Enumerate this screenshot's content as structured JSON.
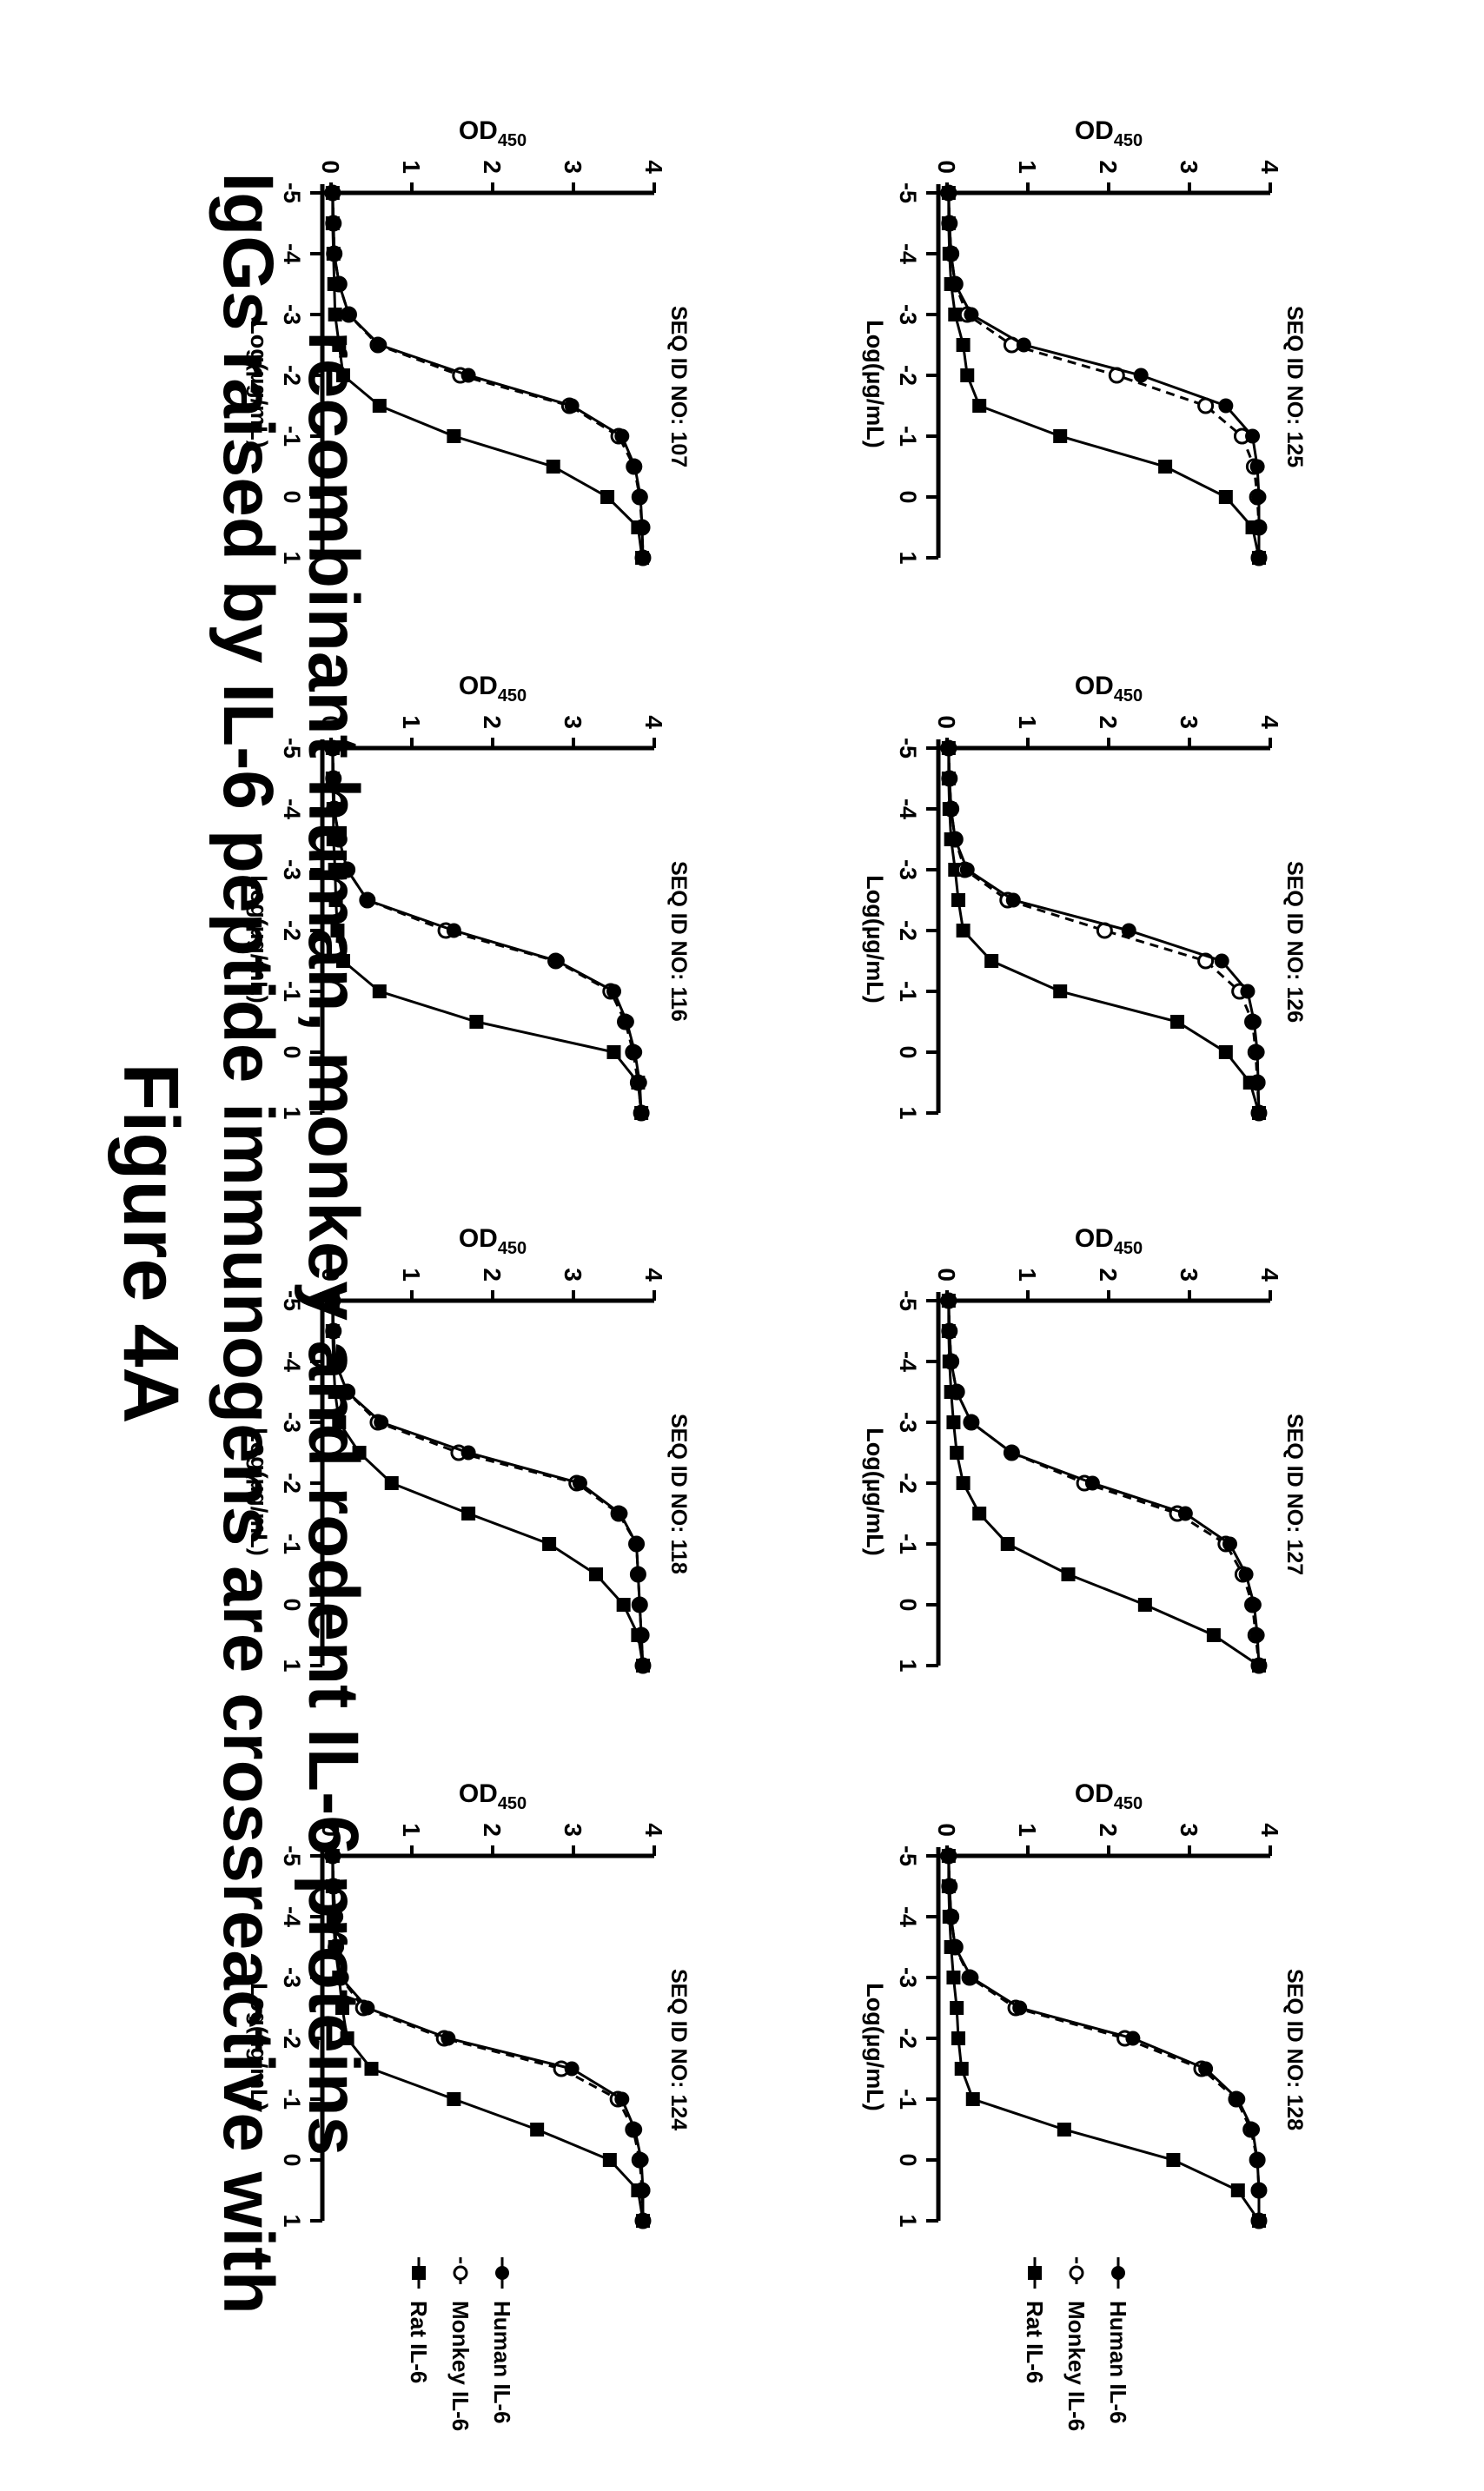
{
  "figure": {
    "title": "Figure 4A",
    "subtitle_line1": "IgGs raised by IL-6 peptide immunogens are crossreactive with",
    "subtitle_line2": "recombinant human, monkey and rodent IL-6 proteins"
  },
  "axis_text": {
    "xlabel": "Log(µg/mL)",
    "ylabel": "OD",
    "ylabel_sub": "450",
    "x_ticks": [
      "-5",
      "-4",
      "-3",
      "-2",
      "-1",
      "0",
      "1"
    ],
    "y_ticks": [
      "0",
      "1",
      "2",
      "3",
      "4"
    ]
  },
  "legends": [
    {
      "items": [
        {
          "label": "Human IL-6",
          "marker": "filled-circle",
          "line": "solid"
        },
        {
          "label": "Monkey IL-6",
          "marker": "open-circle",
          "line": "dashed"
        },
        {
          "label": "Rat IL-6",
          "marker": "filled-square",
          "line": "solid"
        }
      ]
    },
    {
      "items": [
        {
          "label": "Human IL-6",
          "marker": "filled-circle",
          "line": "solid"
        },
        {
          "label": "Monkey IL-6",
          "marker": "open-circle",
          "line": "dashed"
        },
        {
          "label": "Rat IL-6",
          "marker": "filled-square",
          "line": "solid"
        }
      ]
    }
  ],
  "chart_data": [
    {
      "type": "line",
      "title": "SEQ ID NO: 107",
      "xlabel": "Log(µg/mL)",
      "ylabel": "OD450",
      "xlim": [
        -5,
        1
      ],
      "ylim": [
        0,
        4
      ],
      "x": [
        -5,
        -4.5,
        -4,
        -3.5,
        -3,
        -2.5,
        -2,
        -1.5,
        -1,
        -0.5,
        0,
        0.5,
        1
      ],
      "series": [
        {
          "name": "Human IL-6",
          "values": [
            0.02,
            0.03,
            0.04,
            0.1,
            0.22,
            0.6,
            1.7,
            2.98,
            3.6,
            3.76,
            3.83,
            3.85,
            3.86
          ]
        },
        {
          "name": "Monkey IL-6",
          "values": [
            0.02,
            0.03,
            0.04,
            0.1,
            0.22,
            0.58,
            1.6,
            2.95,
            3.56,
            3.75,
            3.82,
            3.85,
            3.86
          ]
        },
        {
          "name": "Rat IL-6",
          "values": [
            0.02,
            0.02,
            0.03,
            0.04,
            0.05,
            0.1,
            0.15,
            0.6,
            1.52,
            2.75,
            3.42,
            3.8,
            3.85
          ]
        }
      ]
    },
    {
      "type": "line",
      "title": "SEQ ID NO: 116",
      "xlabel": "Log(µg/mL)",
      "ylabel": "OD450",
      "xlim": [
        -5,
        1
      ],
      "ylim": [
        0,
        4
      ],
      "x": [
        -5,
        -4.5,
        -4,
        -3.5,
        -3,
        -2.5,
        -2,
        -1.5,
        -1,
        -0.5,
        0,
        0.5,
        1
      ],
      "series": [
        {
          "name": "Human IL-6",
          "values": [
            0.02,
            0.03,
            0.04,
            0.1,
            0.2,
            0.45,
            1.52,
            2.8,
            3.5,
            3.66,
            3.76,
            3.82,
            3.84
          ]
        },
        {
          "name": "Monkey IL-6",
          "values": [
            0.02,
            0.03,
            0.04,
            0.1,
            0.2,
            0.45,
            1.42,
            2.78,
            3.46,
            3.64,
            3.74,
            3.8,
            3.84
          ]
        },
        {
          "name": "Rat IL-6",
          "values": [
            0.02,
            0.02,
            0.03,
            0.03,
            0.05,
            0.06,
            0.08,
            0.15,
            0.6,
            1.8,
            3.5,
            3.8,
            3.84
          ]
        }
      ]
    },
    {
      "type": "line",
      "title": "SEQ ID NO: 118",
      "xlabel": "Log(µg/mL)",
      "ylabel": "OD450",
      "xlim": [
        -5,
        1
      ],
      "ylim": [
        0,
        4
      ],
      "x": [
        -5,
        -4.5,
        -4,
        -3.5,
        -3,
        -2.5,
        -2,
        -1.5,
        -1,
        -0.5,
        0,
        0.5,
        1
      ],
      "series": [
        {
          "name": "Human IL-6",
          "values": [
            0.02,
            0.03,
            0.05,
            0.2,
            0.62,
            1.7,
            3.08,
            3.58,
            3.78,
            3.8,
            3.82,
            3.84,
            3.86
          ]
        },
        {
          "name": "Monkey IL-6",
          "values": [
            0.02,
            0.03,
            0.05,
            0.2,
            0.58,
            1.58,
            3.04,
            3.56,
            3.78,
            3.8,
            3.82,
            3.84,
            3.86
          ]
        },
        {
          "name": "Rat IL-6",
          "values": [
            0.02,
            0.02,
            0.03,
            0.05,
            0.1,
            0.35,
            0.75,
            1.7,
            2.7,
            3.28,
            3.62,
            3.8,
            3.86
          ]
        }
      ]
    },
    {
      "type": "line",
      "title": "SEQ ID NO: 124",
      "xlabel": "Log(µg/mL)",
      "ylabel": "OD450",
      "xlim": [
        -5,
        1
      ],
      "ylim": [
        0,
        4
      ],
      "x": [
        -5,
        -4.5,
        -4,
        -3.5,
        -3,
        -2.5,
        -2,
        -1.5,
        -1,
        -0.5,
        0,
        0.5,
        1
      ],
      "series": [
        {
          "name": "Human IL-6",
          "values": [
            0.02,
            0.03,
            0.05,
            0.06,
            0.12,
            0.45,
            1.45,
            2.98,
            3.6,
            3.76,
            3.84,
            3.86,
            3.86
          ]
        },
        {
          "name": "Monkey IL-6",
          "values": [
            0.02,
            0.03,
            0.05,
            0.06,
            0.12,
            0.4,
            1.4,
            2.85,
            3.55,
            3.74,
            3.82,
            3.85,
            3.86
          ]
        },
        {
          "name": "Rat IL-6",
          "values": [
            0.02,
            0.02,
            0.03,
            0.05,
            0.1,
            0.14,
            0.2,
            0.5,
            1.52,
            2.55,
            3.45,
            3.8,
            3.86
          ]
        }
      ]
    },
    {
      "type": "line",
      "title": "SEQ ID NO: 125",
      "xlabel": "Log(µg/mL)",
      "ylabel": "OD450",
      "xlim": [
        -5,
        1
      ],
      "ylim": [
        0,
        4
      ],
      "x": [
        -5,
        -4.5,
        -4,
        -3.5,
        -3,
        -2.5,
        -2,
        -1.5,
        -1,
        -0.5,
        0,
        0.5,
        1
      ],
      "series": [
        {
          "name": "Human IL-6",
          "values": [
            0.02,
            0.03,
            0.05,
            0.1,
            0.3,
            0.95,
            2.4,
            3.45,
            3.78,
            3.84,
            3.86,
            3.86,
            3.86
          ]
        },
        {
          "name": "Monkey IL-6",
          "values": [
            0.02,
            0.03,
            0.05,
            0.1,
            0.25,
            0.8,
            2.1,
            3.2,
            3.65,
            3.8,
            3.84,
            3.86,
            3.86
          ]
        },
        {
          "name": "Rat IL-6",
          "values": [
            0.02,
            0.02,
            0.03,
            0.05,
            0.1,
            0.2,
            0.25,
            0.4,
            1.4,
            2.7,
            3.45,
            3.78,
            3.86
          ]
        }
      ]
    },
    {
      "type": "line",
      "title": "SEQ ID NO: 126",
      "xlabel": "Log(µg/mL)",
      "ylabel": "OD450",
      "xlim": [
        -5,
        1
      ],
      "ylim": [
        0,
        4
      ],
      "x": [
        -5,
        -4.5,
        -4,
        -3.5,
        -3,
        -2.5,
        -2,
        -1.5,
        -1,
        -0.5,
        0,
        0.5,
        1
      ],
      "series": [
        {
          "name": "Human IL-6",
          "values": [
            0.02,
            0.03,
            0.05,
            0.1,
            0.25,
            0.82,
            2.25,
            3.4,
            3.72,
            3.8,
            3.84,
            3.85,
            3.86
          ]
        },
        {
          "name": "Monkey IL-6",
          "values": [
            0.02,
            0.03,
            0.05,
            0.1,
            0.22,
            0.75,
            1.95,
            3.2,
            3.62,
            3.78,
            3.82,
            3.84,
            3.86
          ]
        },
        {
          "name": "Rat IL-6",
          "values": [
            0.02,
            0.02,
            0.03,
            0.05,
            0.1,
            0.14,
            0.2,
            0.55,
            1.4,
            2.85,
            3.45,
            3.75,
            3.86
          ]
        }
      ]
    },
    {
      "type": "line",
      "title": "SEQ ID NO: 127",
      "xlabel": "Log(µg/mL)",
      "ylabel": "OD450",
      "xlim": [
        -5,
        1
      ],
      "ylim": [
        0,
        4
      ],
      "x": [
        -5,
        -4.5,
        -4,
        -3.5,
        -3,
        -2.5,
        -2,
        -1.5,
        -1,
        -0.5,
        0,
        0.5,
        1
      ],
      "series": [
        {
          "name": "Human IL-6",
          "values": [
            0.02,
            0.03,
            0.05,
            0.12,
            0.3,
            0.8,
            1.8,
            2.95,
            3.5,
            3.7,
            3.8,
            3.84,
            3.86
          ]
        },
        {
          "name": "Monkey IL-6",
          "values": [
            0.02,
            0.03,
            0.05,
            0.12,
            0.3,
            0.8,
            1.7,
            2.85,
            3.45,
            3.66,
            3.78,
            3.82,
            3.86
          ]
        },
        {
          "name": "Rat IL-6",
          "values": [
            0.02,
            0.02,
            0.03,
            0.05,
            0.08,
            0.12,
            0.2,
            0.4,
            0.75,
            1.5,
            2.45,
            3.3,
            3.86
          ]
        }
      ]
    },
    {
      "type": "line",
      "title": "SEQ ID NO: 128",
      "xlabel": "Log(µg/mL)",
      "ylabel": "OD450",
      "xlim": [
        -5,
        1
      ],
      "ylim": [
        0,
        4
      ],
      "x": [
        -5,
        -4.5,
        -4,
        -3.5,
        -3,
        -2.5,
        -2,
        -1.5,
        -1,
        -0.5,
        0,
        0.5,
        1
      ],
      "series": [
        {
          "name": "Human IL-6",
          "values": [
            0.02,
            0.03,
            0.05,
            0.1,
            0.3,
            0.9,
            2.3,
            3.2,
            3.6,
            3.78,
            3.84,
            3.86,
            3.86
          ]
        },
        {
          "name": "Monkey IL-6",
          "values": [
            0.02,
            0.03,
            0.05,
            0.1,
            0.28,
            0.85,
            2.2,
            3.15,
            3.58,
            3.76,
            3.84,
            3.86,
            3.86
          ]
        },
        {
          "name": "Rat IL-6",
          "values": [
            0.02,
            0.02,
            0.03,
            0.05,
            0.08,
            0.12,
            0.14,
            0.18,
            0.32,
            1.45,
            2.8,
            3.6,
            3.86
          ]
        }
      ]
    }
  ]
}
